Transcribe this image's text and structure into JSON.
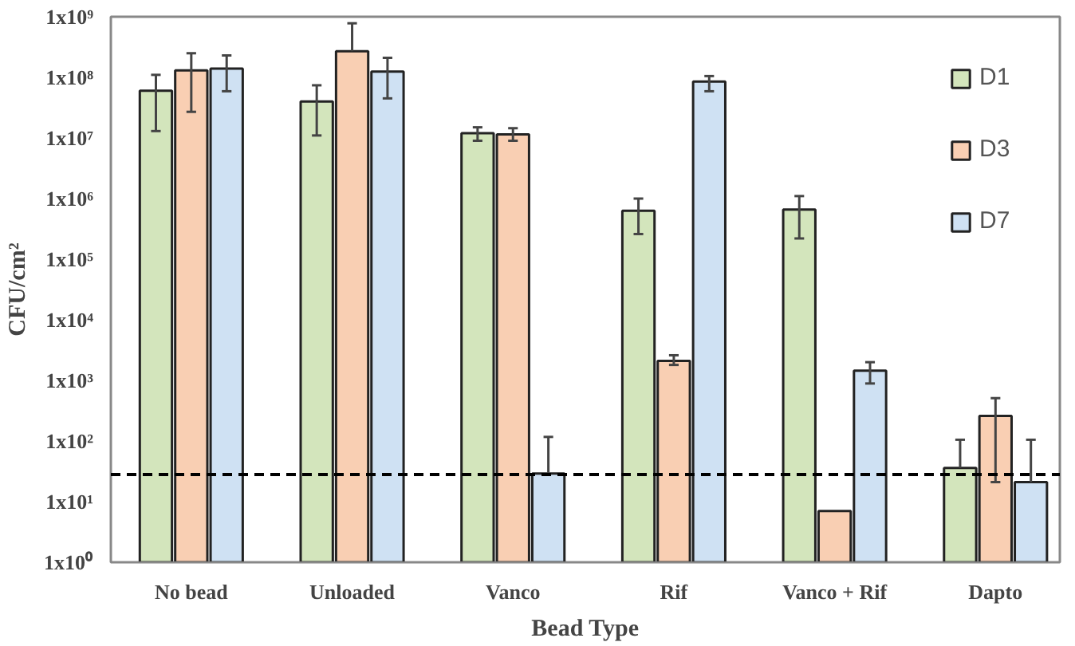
{
  "chart_data": {
    "type": "bar",
    "xlabel": "Bead Type",
    "ylabel": "CFU/cm²",
    "categories": [
      "No bead",
      "Unloaded",
      "Vanco",
      "Rif",
      "Vanco + Rif",
      "Dapto"
    ],
    "series": [
      {
        "name": "D1",
        "color": "#d3e5bc",
        "values": [
          60000000.0,
          40000000.0,
          12000000.0,
          630000.0,
          660000.0,
          36
        ],
        "errors": [
          [
            13000000.0,
            110000000.0
          ],
          [
            11000000.0,
            74000000.0
          ],
          [
            9000000.0,
            15000000.0
          ],
          [
            260000.0,
            1000000.0
          ],
          [
            220000.0,
            1100000.0
          ],
          [
            36,
            105
          ]
        ]
      },
      {
        "name": "D3",
        "color": "#f9cfb3",
        "values": [
          130000000.0,
          270000000.0,
          11500000.0,
          2100,
          7,
          260
        ],
        "errors": [
          [
            27000000.0,
            250000000.0
          ],
          [
            270000000.0,
            780000000.0
          ],
          [
            9000000.0,
            14500000.0
          ],
          [
            1800,
            2600
          ],
          null,
          [
            21,
            510
          ]
        ]
      },
      {
        "name": "D7",
        "color": "#cfe1f3",
        "values": [
          140000000.0,
          125000000.0,
          29,
          85000000.0,
          1450,
          21
        ],
        "errors": [
          [
            59000000.0,
            230000000.0
          ],
          [
            45000000.0,
            210000000.0
          ],
          [
            29,
            117
          ],
          [
            59000000.0,
            105000000.0
          ],
          [
            890,
            2000
          ],
          [
            21,
            105
          ]
        ]
      }
    ],
    "ylim": [
      1,
      1000000000.0
    ],
    "log": true,
    "yticks": [
      {
        "value": 1,
        "label": "1x10⁰"
      },
      {
        "value": 10,
        "label": "1x10¹"
      },
      {
        "value": 100,
        "label": "1x10²"
      },
      {
        "value": 1000,
        "label": "1x10³"
      },
      {
        "value": 10000,
        "label": "1x10⁴"
      },
      {
        "value": 100000,
        "label": "1x10⁵"
      },
      {
        "value": 1000000,
        "label": "1x10⁶"
      },
      {
        "value": 10000000,
        "label": "1x10⁷"
      },
      {
        "value": 100000000,
        "label": "1x10⁸"
      },
      {
        "value": 1000000000,
        "label": "1x10⁹"
      }
    ],
    "ref_lines": [
      {
        "axis": "y",
        "value": 28,
        "color": "#000000",
        "line_style": "dashed"
      }
    ],
    "grid": false,
    "legend": "right"
  }
}
